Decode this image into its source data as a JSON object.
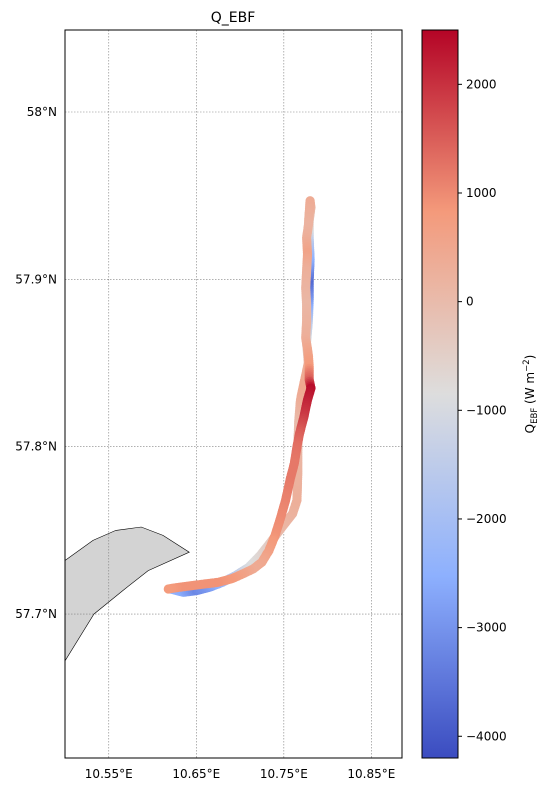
{
  "chart_data": {
    "type": "scatter",
    "title": "Q_EBF",
    "map": {
      "lon_range": [
        10.5,
        10.885
      ],
      "lat_range": [
        57.614,
        58.049
      ],
      "x_ticks": [
        {
          "value": 10.55,
          "label": "10.55°E"
        },
        {
          "value": 10.65,
          "label": "10.65°E"
        },
        {
          "value": 10.75,
          "label": "10.75°E"
        },
        {
          "value": 10.85,
          "label": "10.85°E"
        }
      ],
      "y_ticks": [
        {
          "value": 58.0,
          "label": "58°N"
        },
        {
          "value": 57.9,
          "label": "57.9°N"
        },
        {
          "value": 57.8,
          "label": "57.8°N"
        },
        {
          "value": 57.7,
          "label": "57.7°N"
        }
      ],
      "gridlines": true,
      "land_color": "#d3d3d3",
      "land": [
        [
          10.5,
          57.732
        ],
        [
          10.532,
          57.744
        ],
        [
          10.558,
          57.75
        ],
        [
          10.587,
          57.752
        ],
        [
          10.612,
          57.747
        ],
        [
          10.642,
          57.737
        ],
        [
          10.595,
          57.726
        ],
        [
          10.566,
          57.714
        ],
        [
          10.533,
          57.7
        ],
        [
          10.5,
          57.672
        ]
      ]
    },
    "colorbar": {
      "cmap": "coolwarm",
      "range": [
        -4200,
        2500
      ],
      "ticks": [
        2000,
        1000,
        0,
        -1000,
        -2000,
        -3000,
        -4000
      ],
      "tick_labels": [
        "2000",
        "1000",
        "0",
        "−1000",
        "−2000",
        "−3000",
        "−4000"
      ],
      "label_main": "Q",
      "label_sub": "EBF",
      "label_units": "(W m",
      "label_exp": "−2",
      "label_close": ")"
    },
    "track": [
      [
        10.62,
        57.715,
        -2400
      ],
      [
        10.635,
        57.713,
        -2600
      ],
      [
        10.65,
        57.714,
        -3200
      ],
      [
        10.665,
        57.716,
        -2900
      ],
      [
        10.68,
        57.719,
        -2300
      ],
      [
        10.695,
        57.723,
        -1600
      ],
      [
        10.71,
        57.728,
        -1000
      ],
      [
        10.723,
        57.735,
        -700
      ],
      [
        10.735,
        57.743,
        -400
      ],
      [
        10.748,
        57.752,
        100
      ],
      [
        10.76,
        57.76,
        200
      ],
      [
        10.765,
        57.768,
        300
      ],
      [
        10.766,
        57.785,
        200
      ],
      [
        10.766,
        57.8,
        100
      ],
      [
        10.767,
        57.815,
        0
      ],
      [
        10.769,
        57.828,
        300
      ],
      [
        10.773,
        57.838,
        500
      ],
      [
        10.778,
        57.85,
        300
      ],
      [
        10.776,
        57.862,
        -800
      ],
      [
        10.778,
        57.875,
        -1500
      ],
      [
        10.779,
        57.888,
        -2800
      ],
      [
        10.779,
        57.9,
        -3700
      ],
      [
        10.78,
        57.912,
        -2600
      ],
      [
        10.779,
        57.925,
        -1500
      ],
      [
        10.779,
        57.935,
        -300
      ],
      [
        10.781,
        57.943,
        200
      ],
      [
        10.78,
        57.947,
        400
      ],
      [
        10.779,
        57.94,
        300
      ],
      [
        10.778,
        57.932,
        200
      ],
      [
        10.776,
        57.925,
        300
      ],
      [
        10.777,
        57.915,
        600
      ],
      [
        10.776,
        57.905,
        300
      ],
      [
        10.775,
        57.895,
        200
      ],
      [
        10.776,
        57.885,
        100
      ],
      [
        10.776,
        57.875,
        200
      ],
      [
        10.775,
        57.865,
        300
      ],
      [
        10.778,
        57.855,
        600
      ],
      [
        10.779,
        57.848,
        800
      ],
      [
        10.779,
        57.84,
        1500
      ],
      [
        10.781,
        57.835,
        2400
      ],
      [
        10.777,
        57.828,
        2200
      ],
      [
        10.773,
        57.818,
        1900
      ],
      [
        10.768,
        57.808,
        1500
      ],
      [
        10.765,
        57.8,
        1300
      ],
      [
        10.762,
        57.79,
        1200
      ],
      [
        10.757,
        57.78,
        1200
      ],
      [
        10.752,
        57.768,
        1100
      ],
      [
        10.746,
        57.757,
        1000
      ],
      [
        10.74,
        57.747,
        900
      ],
      [
        10.733,
        57.738,
        700
      ],
      [
        10.725,
        57.731,
        500
      ],
      [
        10.715,
        57.727,
        400
      ],
      [
        10.703,
        57.724,
        600
      ],
      [
        10.69,
        57.721,
        800
      ],
      [
        10.675,
        57.719,
        900
      ],
      [
        10.66,
        57.718,
        900
      ],
      [
        10.645,
        57.717,
        900
      ],
      [
        10.63,
        57.716,
        900
      ],
      [
        10.618,
        57.715,
        800
      ]
    ]
  }
}
